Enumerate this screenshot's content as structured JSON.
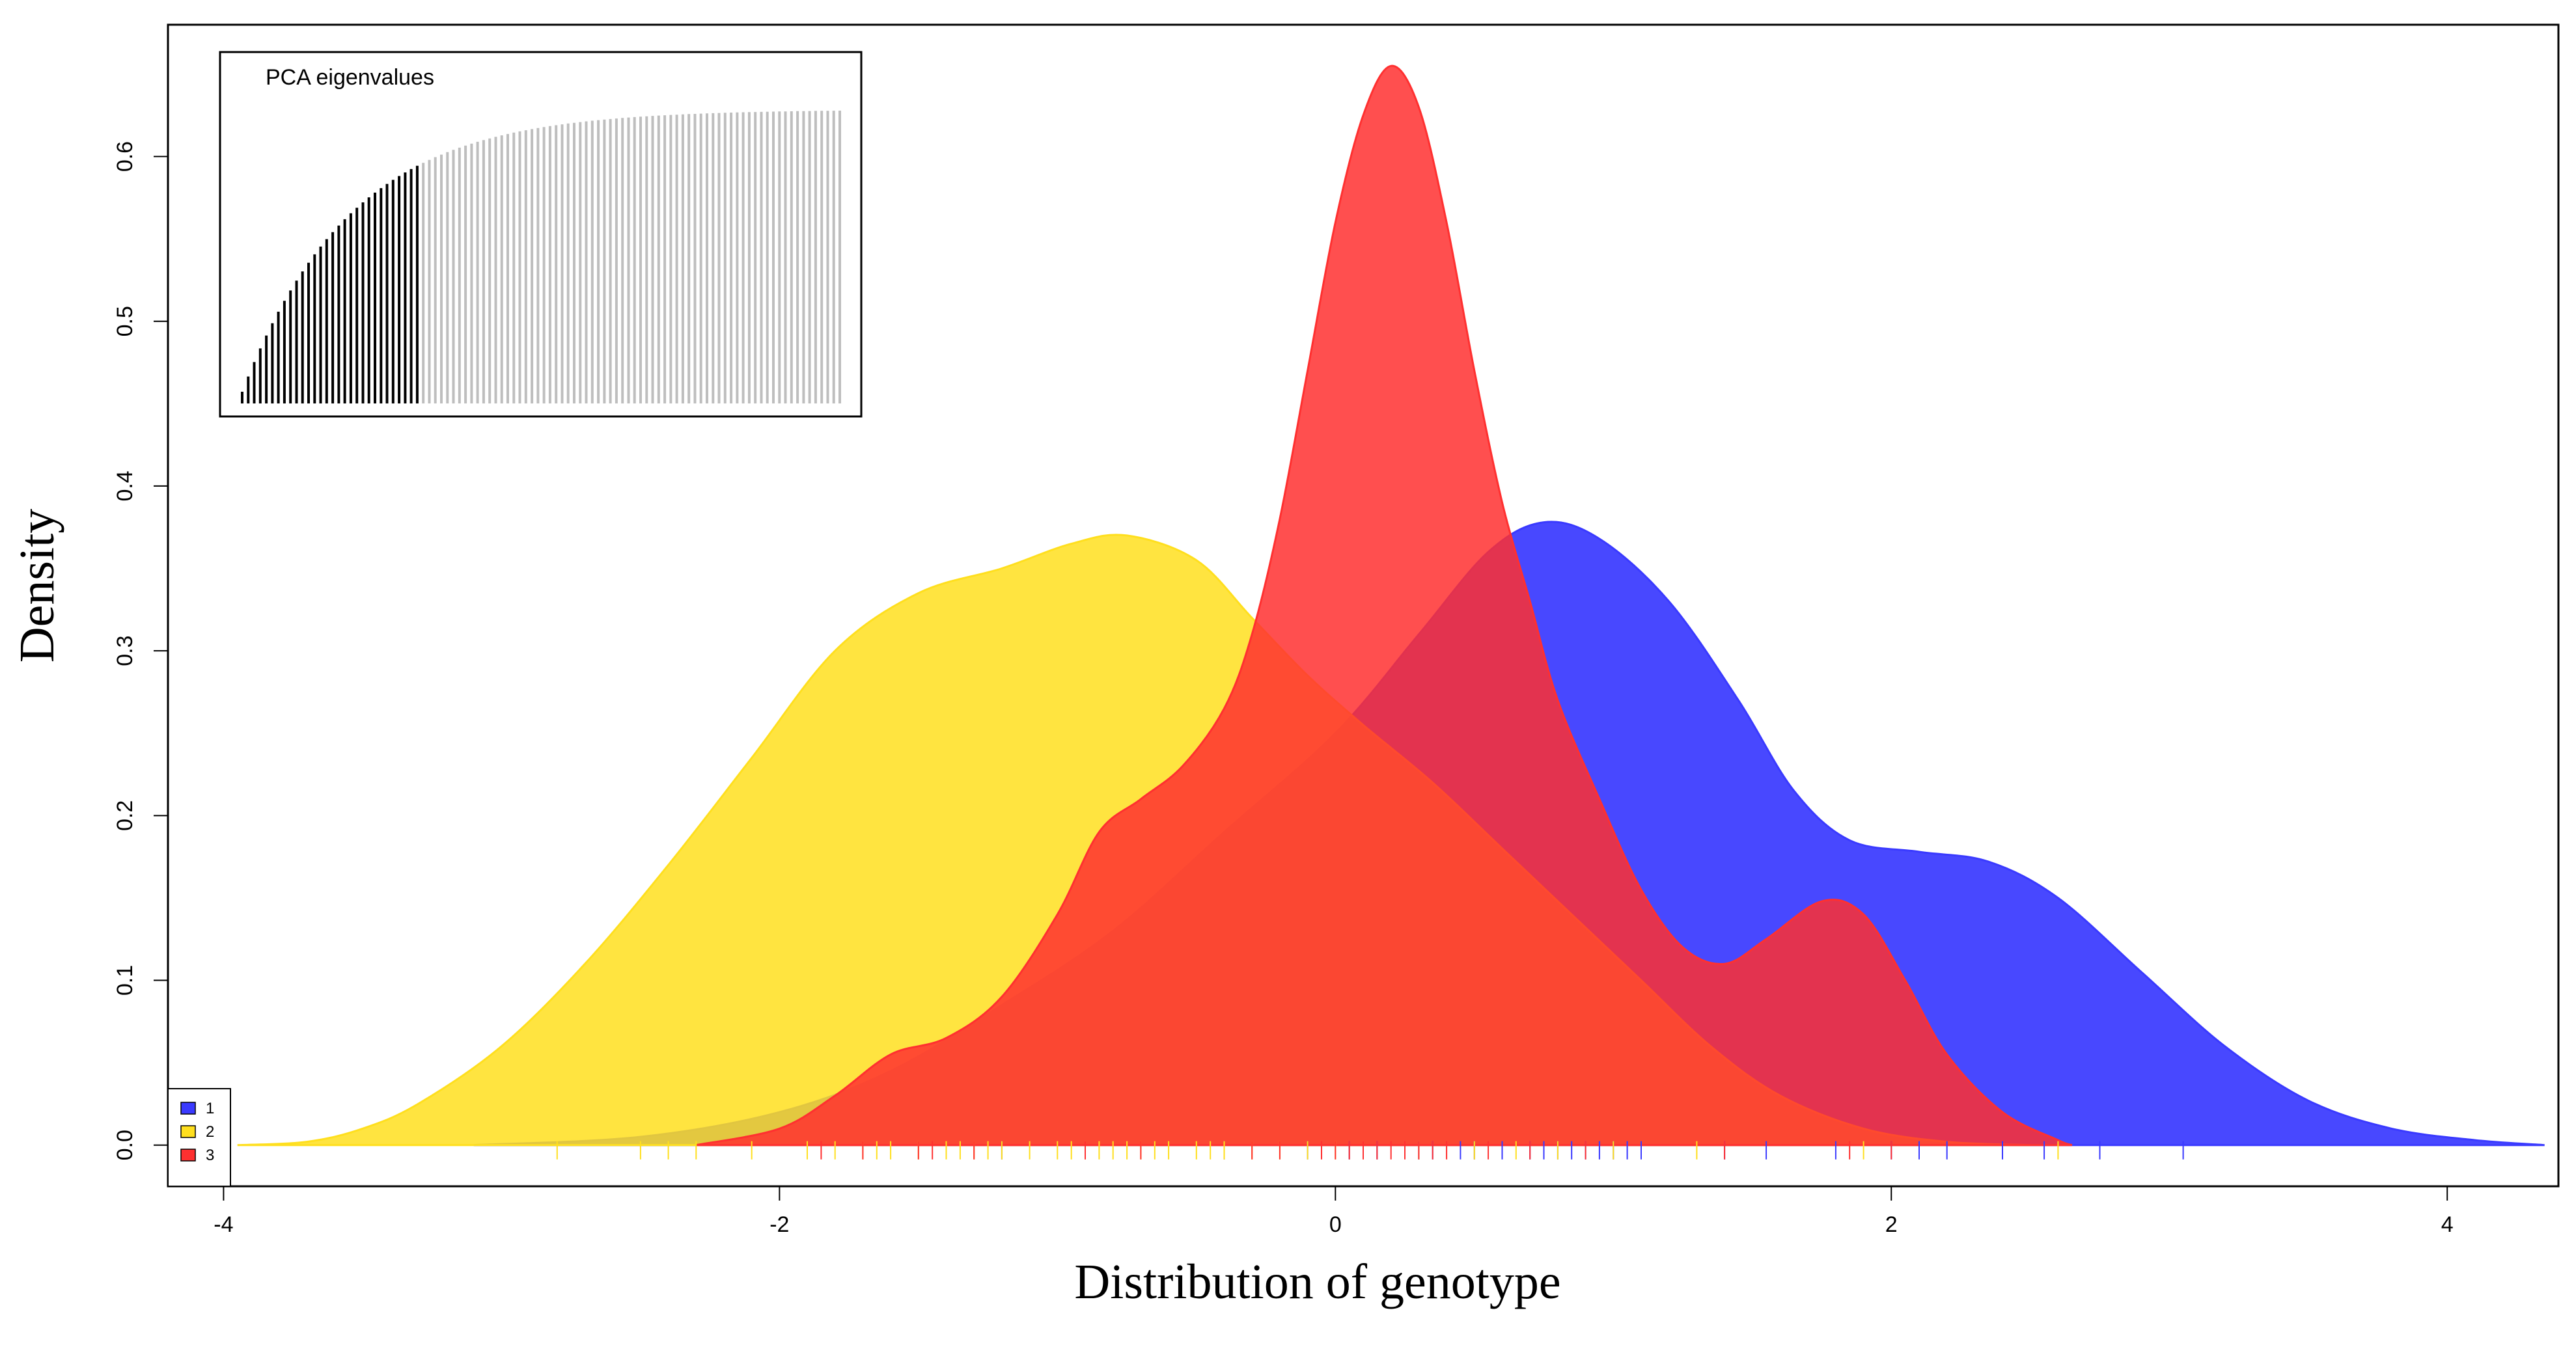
{
  "chart_data": {
    "type": "area",
    "xlabel": "Distribution of genotype",
    "ylabel": "Density",
    "xlim": [
      -4.2,
      4.4
    ],
    "ylim": [
      -0.025,
      0.68
    ],
    "x_ticks": [
      -4,
      -2,
      0,
      2,
      4
    ],
    "x_tick_labels": [
      "-4",
      "-2",
      "0",
      "2",
      "4"
    ],
    "y_ticks": [
      0.0,
      0.1,
      0.2,
      0.3,
      0.4,
      0.5,
      0.6
    ],
    "y_tick_labels": [
      "0.0",
      "0.1",
      "0.2",
      "0.3",
      "0.4",
      "0.5",
      "0.6"
    ],
    "grid": false,
    "legend_position": "bottom-left",
    "series": [
      {
        "name": "1",
        "color": "#3a3aff",
        "points": [
          [
            -3.1,
            0.0
          ],
          [
            -2.5,
            0.005
          ],
          [
            -2.0,
            0.02
          ],
          [
            -1.6,
            0.045
          ],
          [
            -1.2,
            0.085
          ],
          [
            -0.8,
            0.13
          ],
          [
            -0.4,
            0.19
          ],
          [
            0.0,
            0.25
          ],
          [
            0.3,
            0.31
          ],
          [
            0.55,
            0.36
          ],
          [
            0.75,
            0.378
          ],
          [
            0.95,
            0.368
          ],
          [
            1.2,
            0.33
          ],
          [
            1.45,
            0.27
          ],
          [
            1.65,
            0.215
          ],
          [
            1.85,
            0.185
          ],
          [
            2.1,
            0.178
          ],
          [
            2.35,
            0.172
          ],
          [
            2.6,
            0.15
          ],
          [
            2.9,
            0.105
          ],
          [
            3.2,
            0.06
          ],
          [
            3.5,
            0.027
          ],
          [
            3.8,
            0.01
          ],
          [
            4.1,
            0.003
          ],
          [
            4.35,
            0.0
          ]
        ]
      },
      {
        "name": "2",
        "color": "#ffdf1e",
        "points": [
          [
            -3.95,
            0.0
          ],
          [
            -3.7,
            0.002
          ],
          [
            -3.5,
            0.01
          ],
          [
            -3.3,
            0.025
          ],
          [
            -3.0,
            0.06
          ],
          [
            -2.7,
            0.11
          ],
          [
            -2.4,
            0.17
          ],
          [
            -2.1,
            0.235
          ],
          [
            -1.8,
            0.3
          ],
          [
            -1.5,
            0.335
          ],
          [
            -1.2,
            0.35
          ],
          [
            -0.95,
            0.365
          ],
          [
            -0.75,
            0.37
          ],
          [
            -0.5,
            0.355
          ],
          [
            -0.3,
            0.32
          ],
          [
            -0.1,
            0.285
          ],
          [
            0.1,
            0.255
          ],
          [
            0.35,
            0.22
          ],
          [
            0.6,
            0.18
          ],
          [
            0.85,
            0.14
          ],
          [
            1.1,
            0.1
          ],
          [
            1.35,
            0.06
          ],
          [
            1.6,
            0.03
          ],
          [
            1.9,
            0.01
          ],
          [
            2.2,
            0.002
          ],
          [
            2.5,
            0.0
          ]
        ]
      },
      {
        "name": "3",
        "color": "#ff3030",
        "points": [
          [
            -2.3,
            0.0
          ],
          [
            -2.0,
            0.01
          ],
          [
            -1.8,
            0.03
          ],
          [
            -1.6,
            0.055
          ],
          [
            -1.4,
            0.065
          ],
          [
            -1.2,
            0.09
          ],
          [
            -1.0,
            0.14
          ],
          [
            -0.85,
            0.19
          ],
          [
            -0.7,
            0.21
          ],
          [
            -0.55,
            0.23
          ],
          [
            -0.4,
            0.265
          ],
          [
            -0.3,
            0.31
          ],
          [
            -0.2,
            0.38
          ],
          [
            -0.1,
            0.47
          ],
          [
            0.0,
            0.56
          ],
          [
            0.1,
            0.625
          ],
          [
            0.2,
            0.655
          ],
          [
            0.3,
            0.63
          ],
          [
            0.4,
            0.56
          ],
          [
            0.5,
            0.47
          ],
          [
            0.6,
            0.39
          ],
          [
            0.7,
            0.33
          ],
          [
            0.8,
            0.27
          ],
          [
            0.95,
            0.21
          ],
          [
            1.1,
            0.155
          ],
          [
            1.25,
            0.12
          ],
          [
            1.4,
            0.11
          ],
          [
            1.55,
            0.125
          ],
          [
            1.75,
            0.148
          ],
          [
            1.9,
            0.14
          ],
          [
            2.05,
            0.1
          ],
          [
            2.2,
            0.055
          ],
          [
            2.4,
            0.02
          ],
          [
            2.6,
            0.003
          ],
          [
            2.65,
            0.0
          ]
        ]
      }
    ],
    "rug": {
      "1": [
        -1.2,
        -0.4,
        -0.1,
        0.05,
        0.15,
        0.3,
        0.35,
        0.45,
        0.5,
        0.6,
        0.7,
        0.75,
        0.8,
        0.85,
        0.9,
        0.95,
        1.0,
        1.05,
        1.1,
        1.4,
        1.55,
        1.8,
        2.0,
        2.1,
        2.2,
        2.4,
        2.55,
        2.75,
        3.05
      ],
      "2": [
        -2.8,
        -2.5,
        -2.4,
        -2.3,
        -2.1,
        -1.9,
        -1.8,
        -1.7,
        -1.65,
        -1.6,
        -1.5,
        -1.4,
        -1.35,
        -1.3,
        -1.25,
        -1.2,
        -1.1,
        -1.0,
        -0.95,
        -0.9,
        -0.85,
        -0.8,
        -0.75,
        -0.7,
        -0.65,
        -0.6,
        -0.5,
        -0.45,
        -0.4,
        -0.3,
        -0.2,
        -0.1,
        0.0,
        0.1,
        0.3,
        0.5,
        0.65,
        0.8,
        1.0,
        1.3,
        1.9,
        2.6
      ],
      "3": [
        -1.85,
        -1.7,
        -1.5,
        -1.45,
        -1.3,
        -0.9,
        -0.7,
        -0.3,
        -0.2,
        -0.05,
        0.0,
        0.05,
        0.1,
        0.15,
        0.2,
        0.25,
        0.3,
        0.35,
        0.4,
        0.55,
        0.7,
        0.9,
        1.4,
        1.85,
        2.0
      ]
    },
    "inset": {
      "title": "PCA eigenvalues",
      "bar_count": 100,
      "selected_count": 30,
      "selected_color": "#000000",
      "other_color": "#bebebe"
    }
  }
}
